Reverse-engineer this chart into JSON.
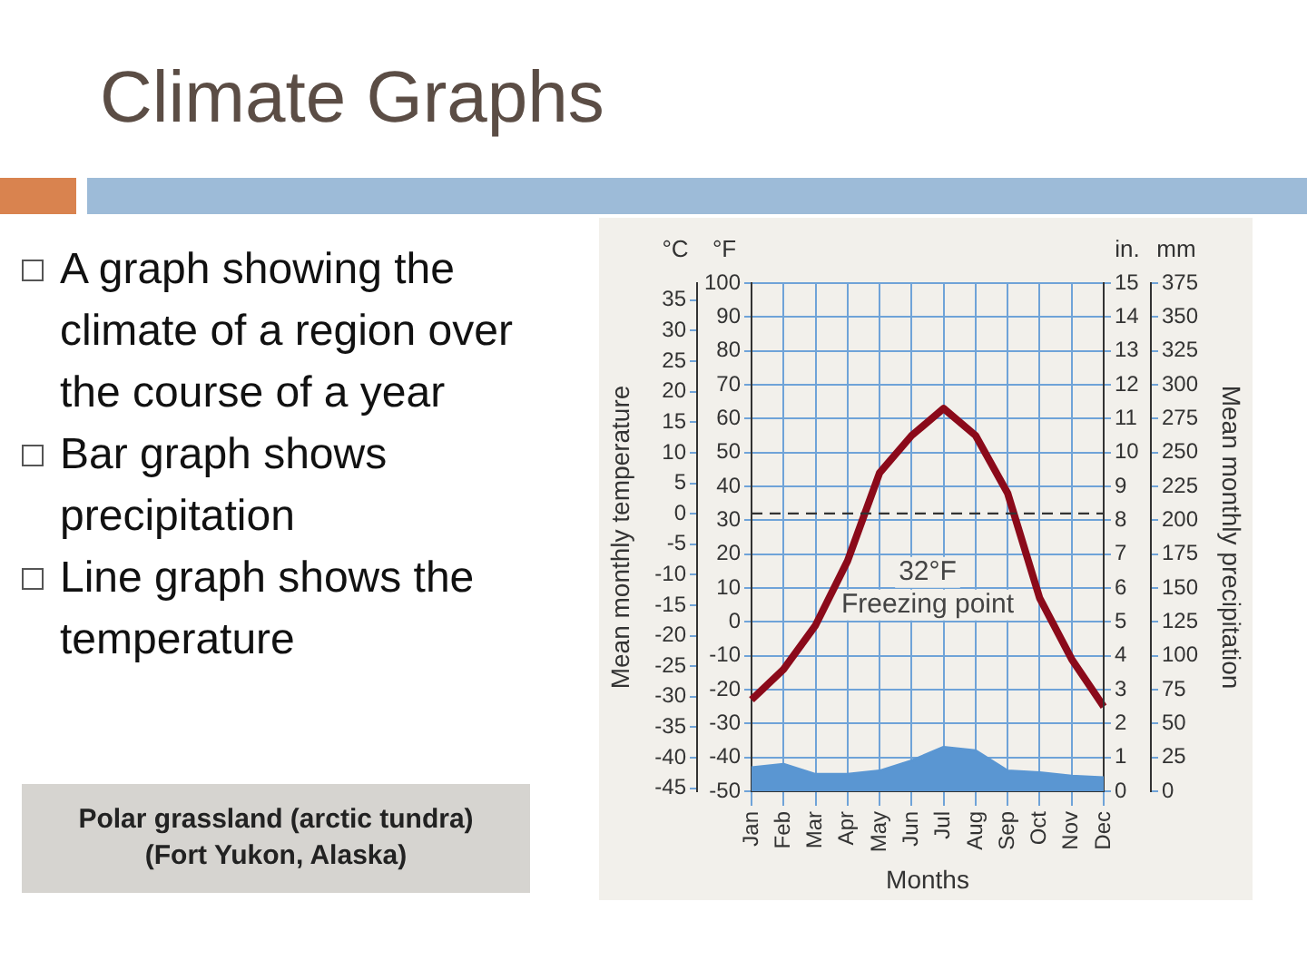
{
  "chart_data": [
    {
      "type": "line",
      "title": "Climate Graphs",
      "annotations": [
        "A graph showing the climate of a region over the course of a year",
        "Bar graph shows precipitation",
        "Line graph shows the temperature",
        "Polar grassland (arctic tundra) (Fort Yukon, Alaska)",
        "°C",
        "°F"
      ],
      "categories": [
        null,
        null,
        null,
        null,
        null,
        null,
        null,
        null,
        null,
        null,
        null,
        null
      ],
      "ylabel": "Mean monthly temperature",
      "series": [
        {
          "color": "#8b0a1a",
          "values": [
            -23,
            -14,
            -1,
            18,
            44,
            55,
            63,
            55,
            38,
            7,
            -11,
            -25
          ]
        }
      ],
      "ylim": [
        -50,
        100
      ],
      "yticks": [
        -50,
        -40,
        -30,
        -20,
        -10,
        0,
        10,
        20,
        30,
        40,
        50,
        60,
        70,
        80,
        90,
        100
      ],
      "y3lim": [
        -45.5,
        37.8
      ],
      "y3ticks": [
        -45,
        -40,
        -35,
        -30,
        -25,
        -20,
        -15,
        -10,
        -5,
        0,
        5,
        10,
        15,
        20,
        25,
        30,
        35
      ],
      "ref_lines": [
        {
          "axis": "y",
          "value": 32,
          "label": "32°F Freezing point",
          "color": "#333333",
          "line_style": "dashed"
        }
      ],
      "grid": true,
      "legend": false,
      "marker": "none",
      "line_style": "solid"
    },
    {
      "type": "area",
      "annotations": [
        "in.",
        "mm"
      ],
      "categories": [
        "Jan",
        "Feb",
        "Mar",
        "Apr",
        "May",
        "Jun",
        "Jul",
        "Aug",
        "Sep",
        "Oct",
        "Nov",
        "Dec"
      ],
      "xlabel": "Months",
      "y2label": "Mean monthly precipitation",
      "series": [
        {
          "axis": "y2",
          "color": "#5a96d2",
          "values": [
            0.7,
            0.8,
            0.5,
            0.5,
            0.6,
            0.9,
            1.3,
            1.2,
            0.6,
            0.55,
            0.45,
            0.4
          ]
        }
      ],
      "y2lim": [
        0,
        15
      ],
      "y2ticks": [
        0,
        1,
        2,
        3,
        4,
        5,
        6,
        7,
        8,
        9,
        10,
        11,
        12,
        13,
        14,
        15
      ],
      "y3lim": [
        0,
        375
      ],
      "y3ticks": [
        0,
        25,
        50,
        75,
        100,
        125,
        150,
        175,
        200,
        225,
        250,
        275,
        300,
        325,
        350,
        375
      ],
      "legend": false
    }
  ]
}
